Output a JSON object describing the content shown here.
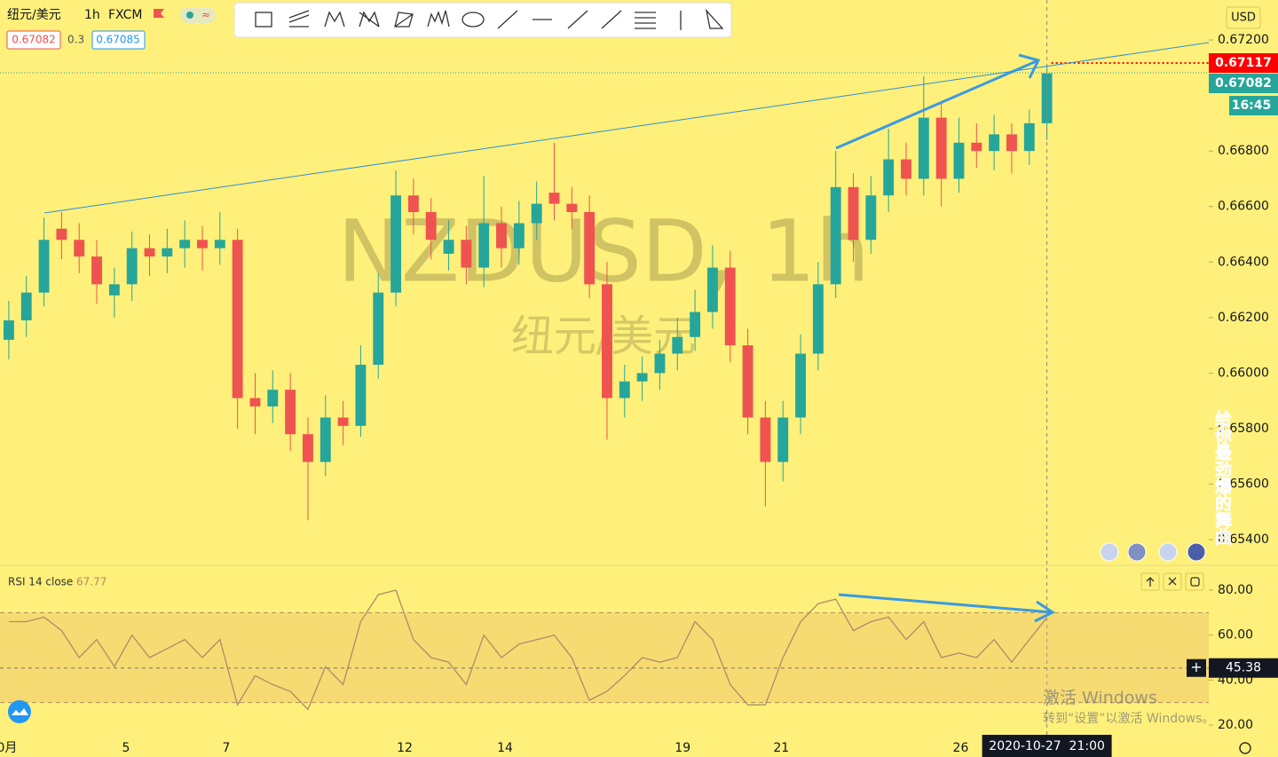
{
  "header": {
    "symbol": "纽元/美元",
    "interval": "1h",
    "exchange": "FXCM",
    "bid": 0.67082,
    "spread": 0.3,
    "ask": 0.67085
  },
  "watermark": {
    "symbol": "NZDUSD, 1h",
    "name": "纽元/美元"
  },
  "overlay_text": "给你最劲爆的舞曲",
  "activation": {
    "title": "激活 Windows",
    "hint": "转到“设置”以激活 Windows。"
  },
  "chart_data": [
    {
      "type": "candlestick",
      "currency": "USD",
      "open": [
        0.6612,
        0.6619,
        0.6629,
        0.6652,
        0.6648,
        0.6642,
        0.6628,
        0.6632,
        0.6645,
        0.6642,
        0.6645,
        0.6648,
        0.6645,
        0.6648,
        0.6591,
        0.6588,
        0.6594,
        0.6578,
        0.6568,
        0.6584,
        0.6581,
        0.6603,
        0.6629,
        0.6664,
        0.6658,
        0.6643,
        0.6648,
        0.6638,
        0.6654,
        0.6645,
        0.6654,
        0.6665,
        0.6661,
        0.6658,
        0.6632,
        0.6591,
        0.6597,
        0.66,
        0.6607,
        0.6613,
        0.6622,
        0.6638,
        0.661,
        0.6584,
        0.6568,
        0.6584,
        0.6607,
        0.6632,
        0.6667,
        0.6648,
        0.6664,
        0.6677,
        0.667,
        0.6692,
        0.667,
        0.6683,
        0.668,
        0.6686,
        0.668,
        0.669
      ],
      "high": [
        0.6626,
        0.6635,
        0.6656,
        0.6658,
        0.6654,
        0.6648,
        0.6638,
        0.6651,
        0.665,
        0.6652,
        0.6655,
        0.6653,
        0.6658,
        0.6652,
        0.66,
        0.6601,
        0.66,
        0.6584,
        0.6592,
        0.659,
        0.661,
        0.6636,
        0.6673,
        0.667,
        0.6663,
        0.6655,
        0.6653,
        0.6671,
        0.666,
        0.6662,
        0.6669,
        0.6683,
        0.6667,
        0.6664,
        0.664,
        0.6603,
        0.6606,
        0.6612,
        0.662,
        0.663,
        0.6646,
        0.6644,
        0.6616,
        0.659,
        0.659,
        0.6614,
        0.664,
        0.668,
        0.6672,
        0.6671,
        0.6688,
        0.6683,
        0.6707,
        0.6698,
        0.6692,
        0.669,
        0.6693,
        0.669,
        0.6695,
        0.6711
      ],
      "low": [
        0.6605,
        0.6613,
        0.6624,
        0.6641,
        0.6636,
        0.6625,
        0.662,
        0.6626,
        0.6635,
        0.6636,
        0.6638,
        0.6637,
        0.6639,
        0.658,
        0.6578,
        0.6582,
        0.6572,
        0.6547,
        0.6563,
        0.6574,
        0.6577,
        0.6598,
        0.6624,
        0.665,
        0.6641,
        0.6637,
        0.6632,
        0.6631,
        0.6638,
        0.6639,
        0.6648,
        0.6655,
        0.6652,
        0.6627,
        0.6576,
        0.6584,
        0.659,
        0.6594,
        0.6601,
        0.6608,
        0.6616,
        0.6604,
        0.6578,
        0.6552,
        0.6561,
        0.6578,
        0.6601,
        0.6627,
        0.664,
        0.6643,
        0.6658,
        0.6664,
        0.6664,
        0.666,
        0.6665,
        0.6674,
        0.6673,
        0.6672,
        0.6675,
        0.6684
      ],
      "close": [
        0.6619,
        0.6629,
        0.6648,
        0.6648,
        0.6642,
        0.6632,
        0.6632,
        0.6645,
        0.6642,
        0.6645,
        0.6648,
        0.6645,
        0.6648,
        0.6591,
        0.6588,
        0.6594,
        0.6578,
        0.6568,
        0.6584,
        0.6581,
        0.6603,
        0.6629,
        0.6664,
        0.6658,
        0.6648,
        0.6648,
        0.6638,
        0.6654,
        0.6645,
        0.6654,
        0.6661,
        0.6661,
        0.6658,
        0.6632,
        0.6591,
        0.6597,
        0.66,
        0.6607,
        0.6613,
        0.6622,
        0.6638,
        0.661,
        0.6584,
        0.6568,
        0.6584,
        0.6607,
        0.6632,
        0.6667,
        0.6648,
        0.6664,
        0.6677,
        0.667,
        0.6692,
        0.667,
        0.6683,
        0.668,
        0.6686,
        0.668,
        0.669,
        0.6708
      ],
      "up_color": "#26a69a",
      "down_color": "#ef5350",
      "ylim": [
        0.65314,
        0.67344
      ],
      "yticks": [
        {
          "value": 0.672,
          "label": "0.67200"
        },
        {
          "value": 0.668,
          "label": "0.66800"
        },
        {
          "value": 0.666,
          "label": "0.66600"
        },
        {
          "value": 0.664,
          "label": "0.66400"
        },
        {
          "value": 0.662,
          "label": "0.66200"
        },
        {
          "value": 0.66,
          "label": "0.66000"
        },
        {
          "value": 0.658,
          "label": "0.65800"
        },
        {
          "value": 0.656,
          "label": "0.65600"
        },
        {
          "value": 0.654,
          "label": "0.65400"
        }
      ],
      "xlim": [
        -0.5,
        68.2
      ],
      "xticks": [
        {
          "value": -0.1,
          "label": "0月"
        },
        {
          "value": 6.66,
          "label": "5"
        },
        {
          "value": 12.36,
          "label": "7"
        },
        {
          "value": 22.5,
          "label": "12"
        },
        {
          "value": 28.2,
          "label": "14"
        },
        {
          "value": 38.3,
          "label": "19"
        },
        {
          "value": 43.9,
          "label": "21"
        },
        {
          "value": 54.1,
          "label": "26"
        }
      ],
      "alert_price": {
        "value": 0.67117,
        "color": "#ff0000"
      },
      "last_price": {
        "value": 0.67082,
        "color": "#26a69a"
      },
      "countdown": "16:45",
      "crosshair_time": "2020-10-27  21:00"
    },
    {
      "type": "line",
      "title": "RSI 14 close",
      "color": "#b08a6a",
      "values": [
        66,
        66,
        68,
        62,
        50,
        58,
        46,
        60,
        50,
        54,
        58,
        50,
        58,
        29,
        42,
        38,
        35,
        27,
        46,
        38,
        66,
        78,
        80,
        58,
        50,
        48,
        38,
        60,
        50,
        56,
        58,
        60,
        50,
        31,
        35,
        42,
        50,
        48,
        50,
        66,
        58,
        38,
        29,
        29,
        50,
        66,
        74,
        76,
        62,
        66,
        68,
        58,
        66,
        50,
        52,
        50,
        58,
        48,
        58,
        67.77
      ],
      "ylim": [
        15.66,
        89.87
      ],
      "yticks": [
        {
          "value": 80,
          "label": "80.00"
        },
        {
          "value": 60,
          "label": "60.00"
        },
        {
          "value": 40,
          "label": "40.00"
        },
        {
          "value": 20,
          "label": "20.00"
        }
      ],
      "band": [
        30,
        70
      ],
      "crosshair_value": 45.38
    }
  ]
}
